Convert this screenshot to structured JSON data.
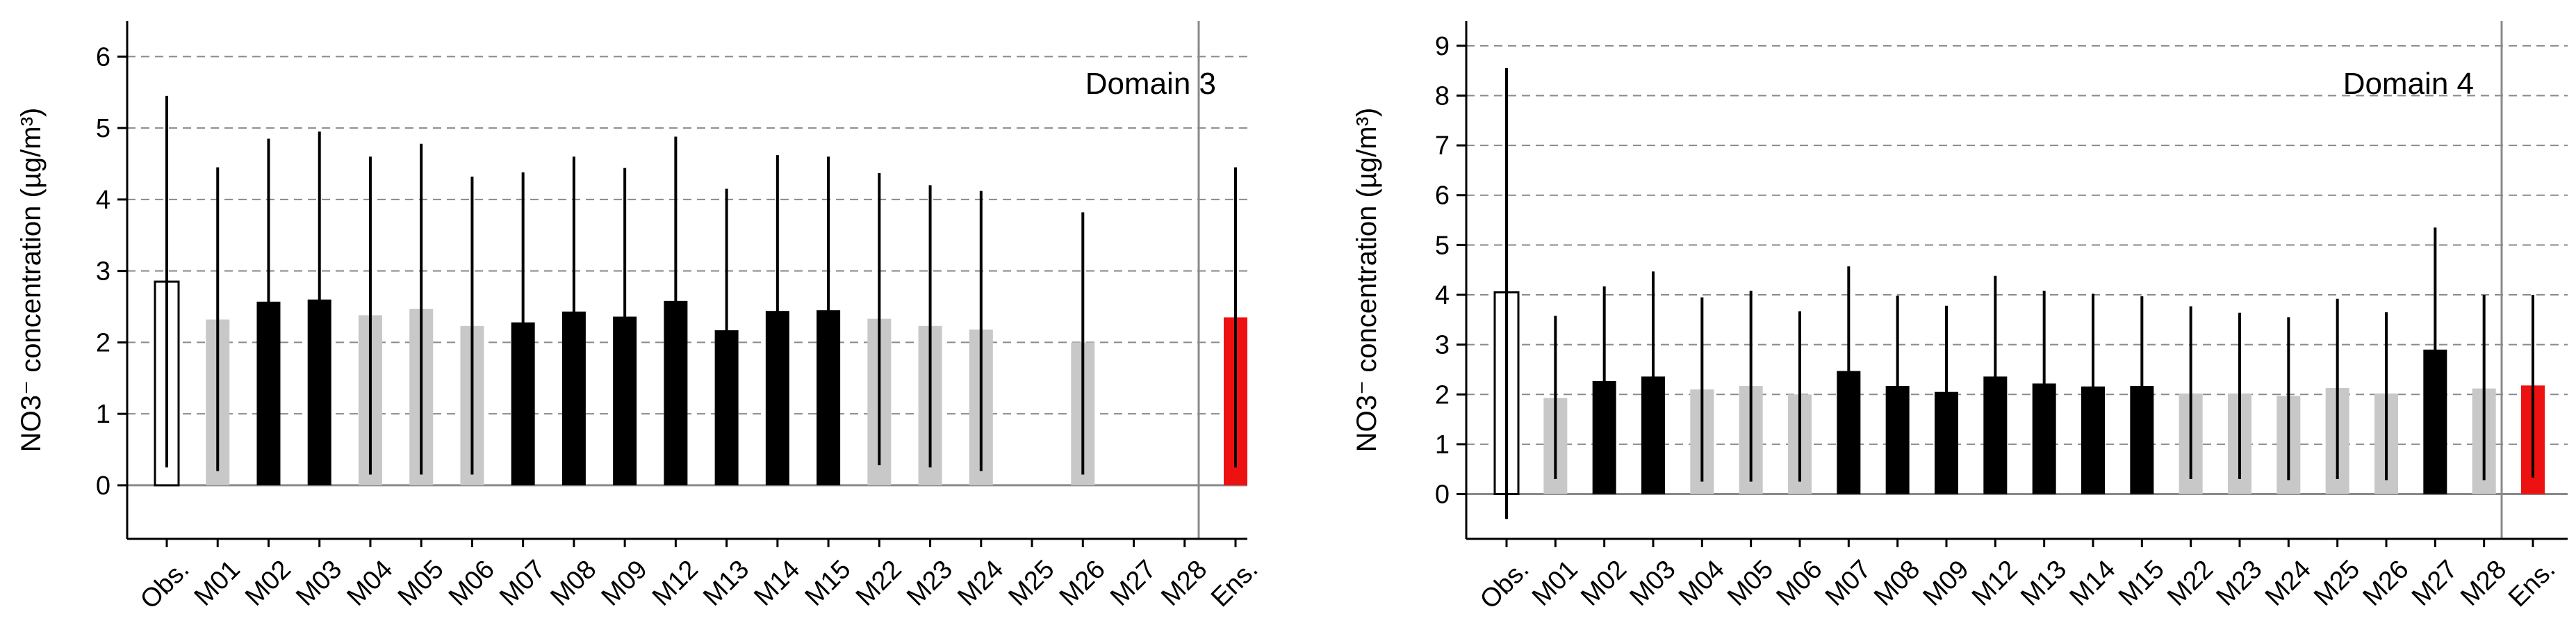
{
  "chart_data": [
    {
      "type": "bar",
      "annotation": "Domain 3",
      "ylabel": "NO3⁻ concentration (µg/m³)",
      "ylim": [
        -0.75,
        6.5
      ],
      "yticks": [
        0,
        1,
        2,
        3,
        4,
        5,
        6
      ],
      "grid": "horizontal dashed",
      "categories": [
        "Obs.",
        "M01",
        "M02",
        "M03",
        "M04",
        "M05",
        "M06",
        "M07",
        "M08",
        "M09",
        "M12",
        "M13",
        "M14",
        "M15",
        "M22",
        "M23",
        "M24",
        "M25",
        "M26",
        "M27",
        "M28",
        "Ens."
      ],
      "values": [
        2.85,
        2.32,
        2.57,
        2.6,
        2.38,
        2.47,
        2.23,
        2.28,
        2.43,
        2.36,
        2.58,
        2.17,
        2.44,
        2.45,
        2.33,
        2.23,
        2.18,
        null,
        2.0,
        null,
        null,
        2.35
      ],
      "err_upper": [
        5.45,
        4.45,
        4.85,
        4.95,
        4.6,
        4.78,
        4.32,
        4.38,
        4.6,
        4.44,
        4.88,
        4.15,
        4.62,
        4.6,
        4.37,
        4.2,
        4.12,
        null,
        3.82,
        null,
        null,
        4.45
      ],
      "err_lower": [
        0.25,
        0.2,
        0.3,
        0.3,
        0.15,
        0.15,
        0.15,
        0.1,
        0.2,
        0.25,
        0.25,
        0.2,
        0.25,
        0.3,
        0.28,
        0.25,
        0.2,
        null,
        0.15,
        null,
        null,
        0.25
      ],
      "bar_style": [
        "obs",
        "gray",
        "black",
        "black",
        "gray",
        "gray",
        "gray",
        "black",
        "black",
        "black",
        "black",
        "black",
        "black",
        "black",
        "gray",
        "gray",
        "gray",
        "none",
        "gray",
        "none",
        "none",
        "ens"
      ]
    },
    {
      "type": "bar",
      "annotation": "Domain 4",
      "ylabel": "NO3⁻ concentration (µg/m³)",
      "ylim": [
        -0.9,
        9.5
      ],
      "yticks": [
        0,
        1,
        2,
        3,
        4,
        5,
        6,
        7,
        8,
        9
      ],
      "grid": "horizontal dashed",
      "categories": [
        "Obs.",
        "M01",
        "M02",
        "M03",
        "M04",
        "M05",
        "M06",
        "M07",
        "M08",
        "M09",
        "M12",
        "M13",
        "M14",
        "M15",
        "M22",
        "M23",
        "M24",
        "M25",
        "M26",
        "M27",
        "M28",
        "Ens."
      ],
      "values": [
        4.05,
        1.93,
        2.27,
        2.36,
        2.1,
        2.17,
        2.0,
        2.47,
        2.17,
        2.05,
        2.36,
        2.22,
        2.16,
        2.17,
        2.02,
        2.02,
        1.97,
        2.13,
        2.02,
        2.9,
        2.12,
        2.18
      ],
      "err_upper": [
        8.55,
        3.58,
        4.17,
        4.47,
        3.95,
        4.08,
        3.67,
        4.57,
        3.98,
        3.78,
        4.38,
        4.08,
        4.02,
        3.97,
        3.77,
        3.64,
        3.55,
        3.92,
        3.65,
        5.35,
        4.0,
        4.0
      ],
      "err_lower": [
        -0.5,
        0.3,
        0.32,
        0.35,
        0.25,
        0.25,
        0.25,
        0.35,
        0.3,
        0.25,
        0.32,
        0.3,
        0.3,
        0.3,
        0.3,
        0.3,
        0.28,
        0.3,
        0.28,
        0.4,
        0.28,
        0.33
      ],
      "bar_style": [
        "obs",
        "gray",
        "black",
        "black",
        "gray",
        "gray",
        "gray",
        "black",
        "black",
        "black",
        "black",
        "black",
        "black",
        "black",
        "gray",
        "gray",
        "gray",
        "gray",
        "gray",
        "black",
        "gray",
        "ens"
      ]
    }
  ],
  "colors": {
    "obs_fill": "#ffffff",
    "gray": "#c8c8c8",
    "black": "#000000",
    "ens": "#ee1111",
    "grid": "#8a8a8a",
    "separator": "#8a8a8a"
  }
}
